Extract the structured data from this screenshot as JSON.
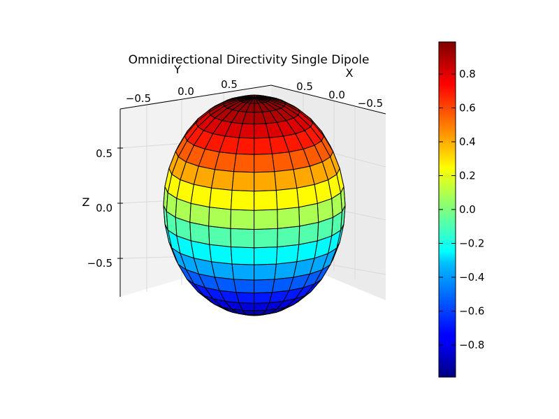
{
  "chart_data": {
    "type": "surface",
    "title": "Omnidirectional Directivity Single Dipole",
    "xlabel": "X",
    "ylabel": "Y",
    "zlabel": "Z",
    "x_ticks": [
      "0.5",
      "0.0",
      "−0.5"
    ],
    "y_ticks": [
      "−0.5",
      "0.0",
      "0.5"
    ],
    "z_ticks": [
      "0.5",
      "0.0",
      "−0.5"
    ],
    "surface": {
      "shape": "unit sphere",
      "theta_lines": 18,
      "phi_lines": 24,
      "color_variable": "z",
      "color_range": [
        -1,
        1
      ],
      "colormap": "jet",
      "edge_color": "#000000"
    },
    "colorbar": {
      "ticks": [
        "0.8",
        "0.6",
        "0.4",
        "0.2",
        "0.0",
        "−0.2",
        "−0.4",
        "−0.6",
        "−0.8"
      ],
      "tick_values": [
        0.8,
        0.6,
        0.4,
        0.2,
        0.0,
        -0.2,
        -0.4,
        -0.6,
        -0.8
      ],
      "range": [
        -0.99,
        0.99
      ]
    },
    "grid": true,
    "pane_color": "#f2f2f2"
  }
}
